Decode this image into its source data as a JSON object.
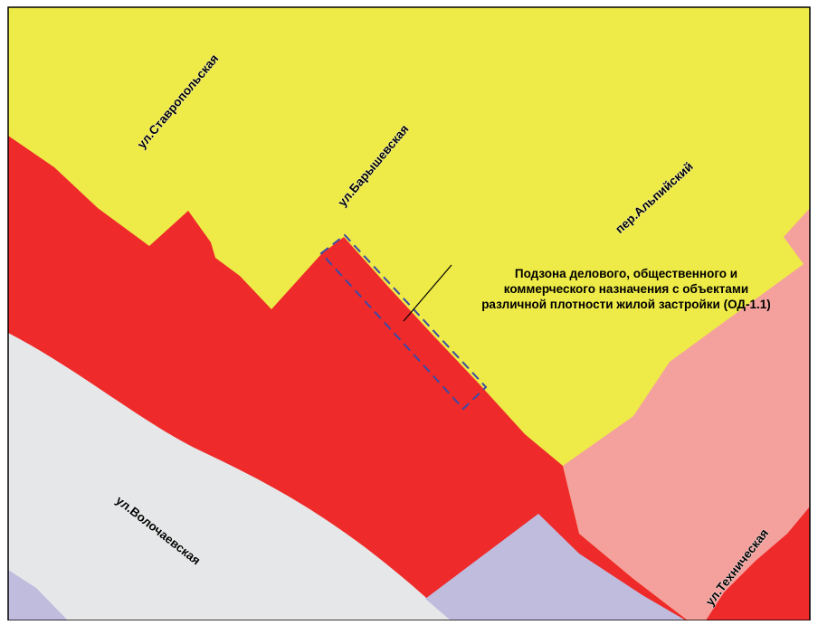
{
  "map": {
    "streets": {
      "stavropolskaya": "ул.Ставропольская",
      "baryshevskaya": "ул.Барышевская",
      "alpiysky": "пер.Альпийский",
      "volochaevskaya": "ул.Волочаевская",
      "tekhnicheskaya": "ул.Техническая"
    },
    "zone_callout": {
      "line1": "Подзона делового, общественного и",
      "line2": "коммерческого назначения с объектами",
      "line3": "различной плотности жилой застройки (ОД-1.1)"
    },
    "colors": {
      "residential_yellow": "#EEEA47",
      "business_red": "#EE2A2A",
      "pink_zone": "#F4A19E",
      "road_grey": "#E6E7E8",
      "lavender_zone": "#C0BCDE",
      "dashed_boundary": "#3B4BA6",
      "frame_border": "#000000"
    }
  }
}
